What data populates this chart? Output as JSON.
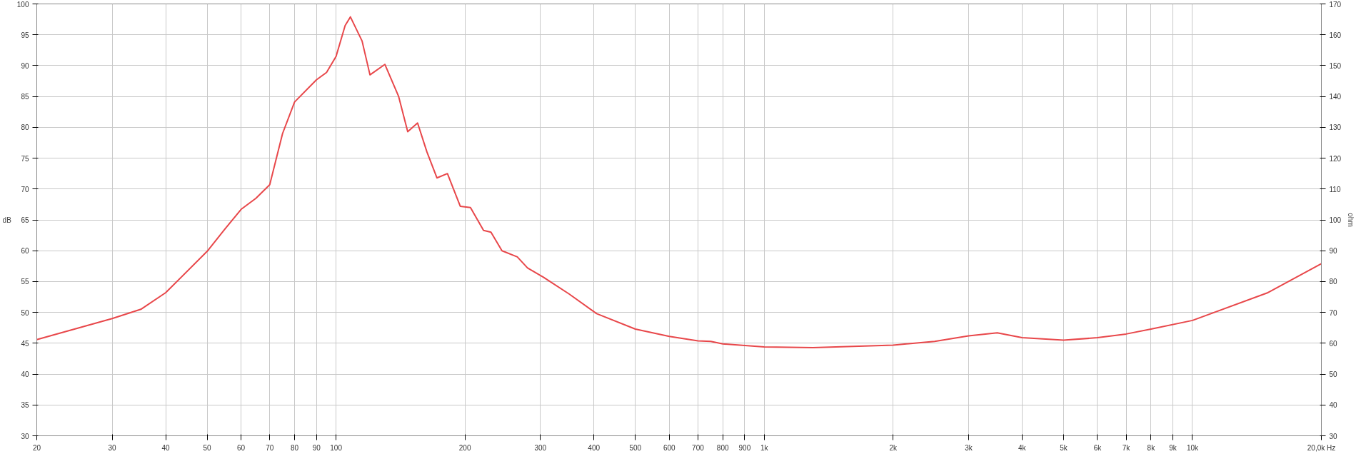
{
  "chart_data": {
    "type": "line",
    "ylabel": "dB",
    "y2label": "ohm",
    "x": [
      20,
      30,
      35,
      40,
      50,
      55,
      60,
      65,
      70,
      75,
      80,
      90,
      95,
      100,
      105,
      108,
      115,
      120,
      130,
      140,
      147,
      155,
      163,
      172,
      182,
      195,
      206,
      221,
      230,
      244,
      265,
      280,
      305,
      350,
      406,
      500,
      600,
      700,
      750,
      800,
      1000,
      1300,
      2000,
      2500,
      3000,
      3500,
      4000,
      5000,
      6000,
      7000,
      8000,
      10000,
      15000,
      20000
    ],
    "series": [
      {
        "color": "#e8474a",
        "values": [
          45.6,
          49.0,
          50.5,
          53.2,
          59.9,
          63.5,
          66.7,
          68.5,
          70.7,
          79,
          84.1,
          87.7,
          88.9,
          91.5,
          96.5,
          97.9,
          94,
          88.5,
          90.2,
          85,
          79.3,
          80.7,
          76,
          71.8,
          72.5,
          67.2,
          67,
          63.3,
          63,
          60,
          59,
          57.2,
          55.7,
          53,
          49.8,
          47.3,
          46.1,
          45.4,
          45.3,
          44.9,
          44.4,
          44.3,
          44.7,
          45.3,
          46.2,
          46.7,
          45.9,
          45.5,
          45.9,
          46.5,
          47.3,
          48.7,
          53.2,
          57.9
        ]
      }
    ],
    "log": "x",
    "grid": true,
    "marker": "none",
    "line_style": "solid",
    "xlim": [
      20,
      20000
    ],
    "xticks": [
      20,
      30,
      40,
      50,
      60,
      70,
      80,
      90,
      100,
      200,
      300,
      400,
      500,
      600,
      700,
      800,
      900,
      {
        "value": 1000,
        "label": "1k"
      },
      {
        "value": 2000,
        "label": "2k"
      },
      {
        "value": 3000,
        "label": "3k"
      },
      {
        "value": 4000,
        "label": "4k"
      },
      {
        "value": 5000,
        "label": "5k"
      },
      {
        "value": 6000,
        "label": "6k"
      },
      {
        "value": 7000,
        "label": "7k"
      },
      {
        "value": 8000,
        "label": "8k"
      },
      {
        "value": 9000,
        "label": "9k"
      },
      {
        "value": 10000,
        "label": "10k"
      },
      {
        "value": 20000,
        "label": "20,0k Hz"
      }
    ],
    "ylim": [
      30,
      100
    ],
    "yticks": [
      30,
      35,
      40,
      45,
      50,
      55,
      60,
      65,
      70,
      75,
      80,
      85,
      90,
      95,
      100
    ],
    "y2lim": [
      30,
      170
    ],
    "y2ticks": [
      30,
      40,
      50,
      60,
      70,
      80,
      90,
      100,
      110,
      120,
      130,
      140,
      150,
      160,
      170
    ]
  }
}
